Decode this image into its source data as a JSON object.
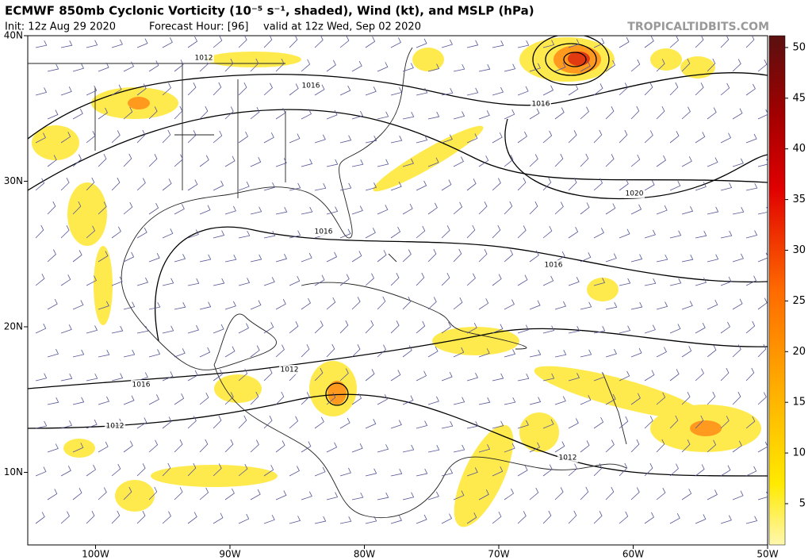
{
  "header": {
    "title": "ECMWF 850mb Cyclonic Vorticity (10⁻⁵ s⁻¹, shaded), Wind (kt), and MSLP (hPa)",
    "init": "Init: 12z Aug 29 2020",
    "forecast_hour": "Forecast Hour: [96]",
    "valid": "valid at 12z Wed, Sep 02 2020",
    "watermark": "TROPICALTIDBITS.COM"
  },
  "map": {
    "lat_ticks": [
      {
        "value": 40,
        "label": "40N"
      },
      {
        "value": 30,
        "label": "30N"
      },
      {
        "value": 20,
        "label": "20N"
      },
      {
        "value": 10,
        "label": "10N"
      }
    ],
    "lon_ticks": [
      {
        "value": -100,
        "label": "100W"
      },
      {
        "value": -90,
        "label": "90W"
      },
      {
        "value": -80,
        "label": "80W"
      },
      {
        "value": -70,
        "label": "70W"
      },
      {
        "value": -60,
        "label": "60W"
      },
      {
        "value": -50,
        "label": "50W"
      }
    ],
    "isobar_labels": [
      "1012",
      "1016",
      "1016",
      "1020",
      "1016",
      "1016",
      "1012",
      "1016",
      "1012",
      "1012"
    ]
  },
  "colorbar": {
    "ticks": [
      5,
      10,
      15,
      20,
      25,
      30,
      35,
      40,
      45,
      50
    ]
  }
}
